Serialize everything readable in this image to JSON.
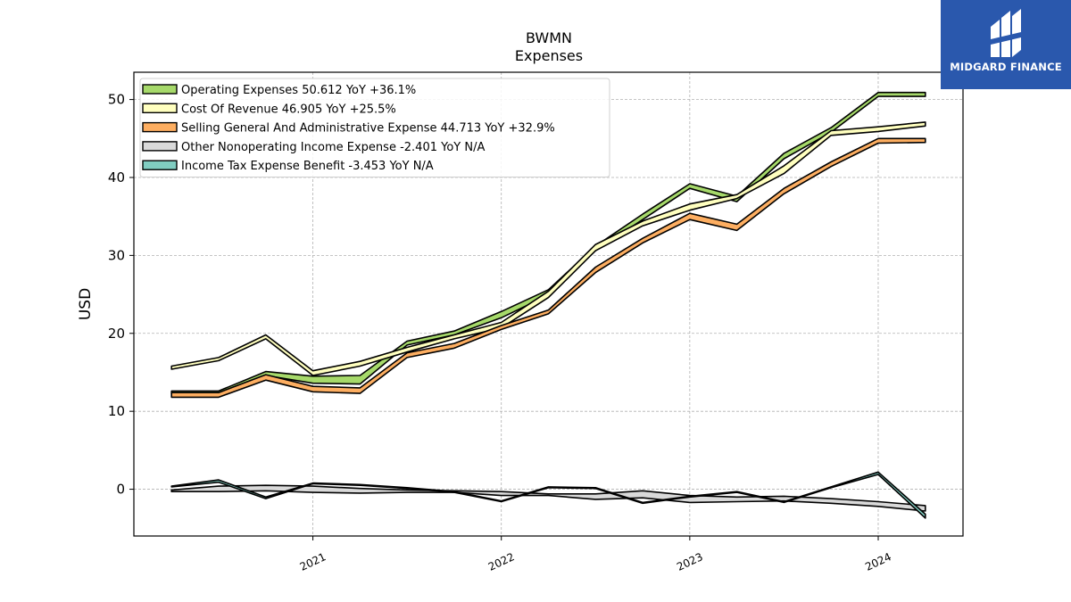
{
  "chart_data": {
    "type": "line",
    "title": "BWMN",
    "subtitle": "Expenses",
    "ylabel": "USD",
    "xlabel": "",
    "ylim": [
      -6,
      53.5
    ],
    "xlim": [
      2020.05,
      2024.45
    ],
    "yticks": [
      0,
      10,
      20,
      30,
      40,
      50
    ],
    "xticks": [
      {
        "value": 2021,
        "label": "2021"
      },
      {
        "value": 2022,
        "label": "2022"
      },
      {
        "value": 2023,
        "label": "2023"
      },
      {
        "value": 2024,
        "label": "2024"
      }
    ],
    "grid": true,
    "legend_position": "top-left",
    "x": [
      2020.25,
      2020.5,
      2020.75,
      2021.0,
      2021.25,
      2021.5,
      2021.75,
      2022.0,
      2022.25,
      2022.5,
      2022.75,
      2023.0,
      2023.25,
      2023.5,
      2023.75,
      2024.0,
      2024.25
    ],
    "series": [
      {
        "name": "Operating Expenses",
        "legend": "Operating Expenses  50.612 YoY +36.1%",
        "color": "#a6d96a",
        "low": [
          12.3,
          12.3,
          14.6,
          13.6,
          13.5,
          18.5,
          19.8,
          22.0,
          24.9,
          30.6,
          34.6,
          38.6,
          36.9,
          42.4,
          45.8,
          50.4,
          50.4
        ],
        "high": [
          12.6,
          12.6,
          15.1,
          14.5,
          14.6,
          19.0,
          20.3,
          22.8,
          25.6,
          31.2,
          35.3,
          39.2,
          37.6,
          43.1,
          46.4,
          50.9,
          50.9
        ]
      },
      {
        "name": "Cost Of Revenue",
        "legend": "Cost Of Revenue  46.905 YoY +25.5%",
        "color": "#ffffbf",
        "low": [
          15.4,
          16.5,
          19.3,
          14.6,
          15.8,
          17.6,
          19.3,
          20.7,
          24.6,
          30.6,
          33.8,
          35.8,
          37.3,
          40.5,
          45.4,
          45.9,
          46.6
        ],
        "high": [
          15.8,
          16.9,
          19.8,
          15.2,
          16.4,
          18.2,
          19.8,
          21.4,
          25.4,
          31.4,
          34.4,
          36.6,
          37.8,
          41.5,
          46.0,
          46.5,
          47.1
        ]
      },
      {
        "name": "Selling General And Administrative Expense",
        "legend": "Selling General And Administrative Expense  44.713 YoY +32.9%",
        "color": "#fdae61",
        "low": [
          11.8,
          11.8,
          14.0,
          12.5,
          12.3,
          16.9,
          18.1,
          20.5,
          22.5,
          27.8,
          31.6,
          34.6,
          33.2,
          37.9,
          41.4,
          44.4,
          44.5
        ],
        "high": [
          12.4,
          12.4,
          14.7,
          13.2,
          13.0,
          17.5,
          18.7,
          21.0,
          23.0,
          28.5,
          32.2,
          35.4,
          34.0,
          38.6,
          42.0,
          45.0,
          45.0
        ]
      },
      {
        "name": "Other Nonoperating Income Expense",
        "legend": "Other Nonoperating Income Expense  -2.401 YoY N/A",
        "color": "#d9d9d9",
        "low": [
          -0.3,
          -0.3,
          -0.2,
          -0.4,
          -0.5,
          -0.4,
          -0.4,
          -0.8,
          -0.8,
          -1.3,
          -1.1,
          -1.7,
          -1.6,
          -1.5,
          -1.8,
          -2.2,
          -2.8
        ],
        "high": [
          -0.1,
          0.4,
          0.5,
          0.4,
          0.1,
          -0.1,
          -0.2,
          -0.3,
          -0.6,
          -0.6,
          -0.2,
          -0.8,
          -1.0,
          -0.9,
          -1.2,
          -1.6,
          -2.1
        ]
      },
      {
        "name": "Income Tax Expense Benefit",
        "legend": "Income Tax Expense Benefit  -3.453 YoY N/A",
        "color": "#80cdc1",
        "low": [
          0.3,
          0.9,
          -1.2,
          0.7,
          0.5,
          0.1,
          -0.4,
          -1.6,
          0.2,
          0.1,
          -1.8,
          -1.0,
          -0.4,
          -1.7,
          0.2,
          1.9,
          -3.7
        ],
        "high": [
          0.4,
          1.2,
          -1.0,
          0.8,
          0.6,
          0.2,
          -0.3,
          -1.5,
          0.3,
          0.2,
          -1.7,
          -0.9,
          -0.3,
          -1.6,
          0.3,
          2.2,
          -3.2
        ]
      }
    ]
  },
  "logo": {
    "text": "MIDGARD FINANCE",
    "background": "#2a58ad"
  }
}
